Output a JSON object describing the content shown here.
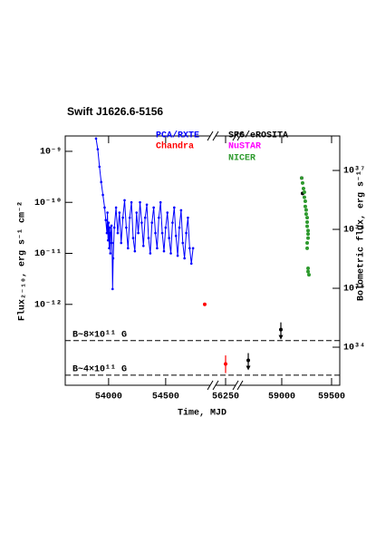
{
  "chart_data": {
    "type": "scatter",
    "title": "Swift J1626.6-5156",
    "xlabel": "Time, MJD",
    "ylabel": "Flux₂₋₁₀, erg s⁻¹ cm⁻²",
    "y2label": "Bolometric flux, erg s⁻¹",
    "log_y": true,
    "x_segments": [
      {
        "xlim": [
          53620,
          54890
        ],
        "xticks": [
          54000,
          54500
        ]
      },
      {
        "xlim": [
          56150,
          56350
        ],
        "xticks": [
          56250
        ]
      },
      {
        "xlim": [
          58582,
          59582
        ],
        "xticks": [
          59000,
          59500
        ]
      }
    ],
    "ylim": [
      2.6e-14,
      2e-09
    ],
    "yticks": [
      {
        "value": 1e-09,
        "label": "10⁻⁹"
      },
      {
        "value": 1e-10,
        "label": "10⁻¹⁰"
      },
      {
        "value": 1e-11,
        "label": "10⁻¹¹"
      },
      {
        "value": 1e-12,
        "label": "10⁻¹²"
      }
    ],
    "y2lim": [
      2.26e+33,
      3.85e+37
    ],
    "y2ticks": [
      {
        "value": 1e+37,
        "label": "10³⁷"
      },
      {
        "value": 1e+36,
        "label": "10³⁶"
      },
      {
        "value": 1e+35,
        "label": "10³⁵"
      },
      {
        "value": 1e+34,
        "label": "10³⁴"
      }
    ],
    "hlines": [
      {
        "value": 1.95e-13,
        "label": "B~8×10¹¹ G"
      },
      {
        "value": 4.1e-14,
        "label": "B~4×10¹¹ G"
      }
    ],
    "series": [
      {
        "name": "PCA/RXTE",
        "color": "#0000ff",
        "connect": true,
        "x": [
          53890,
          53905,
          53920,
          53935,
          53950,
          53965,
          53975,
          53985,
          53990,
          53995,
          54000,
          54005,
          54010,
          54015,
          54020,
          54025,
          54030,
          54035,
          54040,
          54050,
          54065,
          54080,
          54095,
          54110,
          54125,
          54140,
          54155,
          54170,
          54185,
          54200,
          54215,
          54230,
          54245,
          54260,
          54275,
          54290,
          54305,
          54320,
          54335,
          54350,
          54365,
          54380,
          54395,
          54410,
          54425,
          54440,
          54455,
          54470,
          54485,
          54500,
          54515,
          54530,
          54545,
          54560,
          54575,
          54590,
          54605,
          54620,
          54635,
          54650,
          54665,
          54680,
          54695,
          54710,
          54725,
          54740
        ],
        "values": [
          1.78e-09,
          1.1e-09,
          5e-10,
          2.5e-10,
          1.4e-10,
          7.9e-11,
          4.5e-11,
          2.5e-11,
          6.3e-11,
          1.8e-11,
          4e-11,
          1.26e-11,
          3.2e-11,
          1e-11,
          2.5e-11,
          3.5e-11,
          1.6e-11,
          2e-12,
          8e-12,
          3.2e-11,
          7.9e-11,
          2.5e-11,
          6.3e-11,
          1.6e-11,
          5e-11,
          1.1e-10,
          3.2e-11,
          1.26e-11,
          5e-11,
          1e-10,
          2e-11,
          1.1e-11,
          6.3e-11,
          2.5e-11,
          1e-10,
          4e-11,
          1.4e-11,
          5e-11,
          9e-11,
          2e-11,
          1e-11,
          4e-11,
          7.9e-11,
          2.5e-11,
          1.26e-11,
          5e-11,
          1e-10,
          2.5e-11,
          1.1e-11,
          3.2e-11,
          6.3e-11,
          2e-11,
          1e-11,
          4e-11,
          7.9e-11,
          2.2e-11,
          9e-12,
          3.2e-11,
          7e-11,
          1.6e-11,
          8e-12,
          2.5e-11,
          5e-11,
          1.26e-11,
          6.3e-12,
          1.26e-11
        ]
      },
      {
        "name": "Chandra",
        "color": "#ff0000",
        "x": [
          54842,
          56250
        ],
        "values": [
          1e-12,
          6.8e-14
        ],
        "err_minus": [
          null,
          2.3e-14
        ],
        "err_plus": [
          null,
          3.2e-14
        ]
      },
      {
        "name": "SRG/eROSITA",
        "color": "#000000",
        "x": [
          58664,
          58991,
          59209
        ],
        "values": [
          8e-14,
          3.2e-13,
          1.5e-10
        ],
        "upper_limit": [
          true,
          true,
          false
        ]
      },
      {
        "name": "NuSTAR",
        "color": "#ff00ff",
        "x": [
          59200
        ],
        "values": [
          3e-10
        ]
      },
      {
        "name": "NICER",
        "color": "#2e9a2e",
        "x": [
          59200,
          59209,
          59218,
          59227,
          59227,
          59236,
          59236,
          59245,
          59245,
          59255,
          59255,
          59255,
          59264,
          59264,
          59264,
          59255,
          59255,
          59264,
          59273,
          59264
        ],
        "values": [
          3e-10,
          2.4e-10,
          1.86e-10,
          1.58e-10,
          1.26e-10,
          1.05e-10,
          8.3e-11,
          7.1e-11,
          5.9e-11,
          5e-11,
          4.1e-11,
          3.4e-11,
          2.8e-11,
          2.4e-11,
          2e-11,
          1.6e-11,
          1.26e-11,
          5.1e-12,
          3.8e-12,
          4.4e-12
        ]
      }
    ]
  }
}
